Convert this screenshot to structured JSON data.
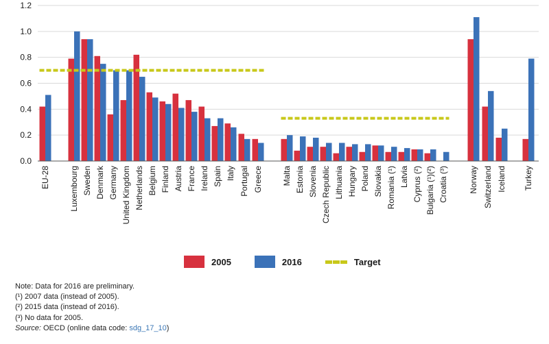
{
  "chart_data": {
    "type": "bar",
    "ylim": [
      0,
      1.2
    ],
    "yticks": [
      "0.0",
      "0.2",
      "0.4",
      "0.6",
      "0.8",
      "1.0",
      "1.2"
    ],
    "grid": true,
    "categories": [
      "EU-28",
      "Luxembourg",
      "Sweden",
      "Denmark",
      "Germany",
      "United Kingdom",
      "Netherlands",
      "Belgium",
      "Finland",
      "Austria",
      "France",
      "Ireland",
      "Spain",
      "Italy",
      "Portugal",
      "Greece",
      "Malta",
      "Estonia",
      "Slovenia",
      "Czech Republic",
      "Lithuania",
      "Hungary",
      "Poland",
      "Slovakia",
      "Romania (¹)",
      "Latvia",
      "Cyprus (²)",
      "Bulgaria (¹)(²)",
      "Croatia (³)",
      "Norway",
      "Switzerland",
      "Iceland",
      "Turkey"
    ],
    "series": [
      {
        "name": "2005",
        "color": "#d7313e",
        "values": [
          0.42,
          0.79,
          0.94,
          0.81,
          0.36,
          0.47,
          0.82,
          0.53,
          0.46,
          0.52,
          0.47,
          0.42,
          0.27,
          0.29,
          0.21,
          0.17,
          0.17,
          0.08,
          0.11,
          0.11,
          0.06,
          0.11,
          0.07,
          0.12,
          0.07,
          0.07,
          0.09,
          0.06,
          null,
          0.94,
          0.42,
          0.18,
          0.17
        ]
      },
      {
        "name": "2016",
        "color": "#3b72b8",
        "values": [
          0.51,
          1.0,
          0.94,
          0.75,
          0.7,
          0.7,
          0.65,
          0.49,
          0.44,
          0.41,
          0.38,
          0.33,
          0.33,
          0.26,
          0.17,
          0.14,
          0.2,
          0.19,
          0.18,
          0.14,
          0.14,
          0.13,
          0.13,
          0.12,
          0.11,
          0.1,
          0.09,
          0.09,
          0.07,
          1.11,
          0.54,
          0.25,
          0.79
        ]
      }
    ],
    "targets": [
      {
        "name": "Target",
        "value": 0.7,
        "from": "EU-28",
        "to": "Greece",
        "color": "#c8c81a"
      },
      {
        "name": "Target",
        "value": 0.33,
        "from": "Malta",
        "to": "Croatia (³)",
        "color": "#c8c81a"
      }
    ]
  },
  "legend": {
    "series_2005": "2005",
    "series_2016": "2016",
    "target": "Target",
    "color_2005": "#d7313e",
    "color_2016": "#3b72b8",
    "color_target": "#c8c81a"
  },
  "notes": {
    "line1": "Note: Data for 2016 are preliminary.",
    "line2": "(¹) 2007 data (instead of 2005).",
    "line3": "(²) 2015 data (instead of 2016).",
    "line4": "(³) No data for 2005.",
    "source_label": "Source:",
    "source_text": " OECD (online data code: ",
    "source_code": "sdg_17_10",
    "source_end": ")"
  }
}
